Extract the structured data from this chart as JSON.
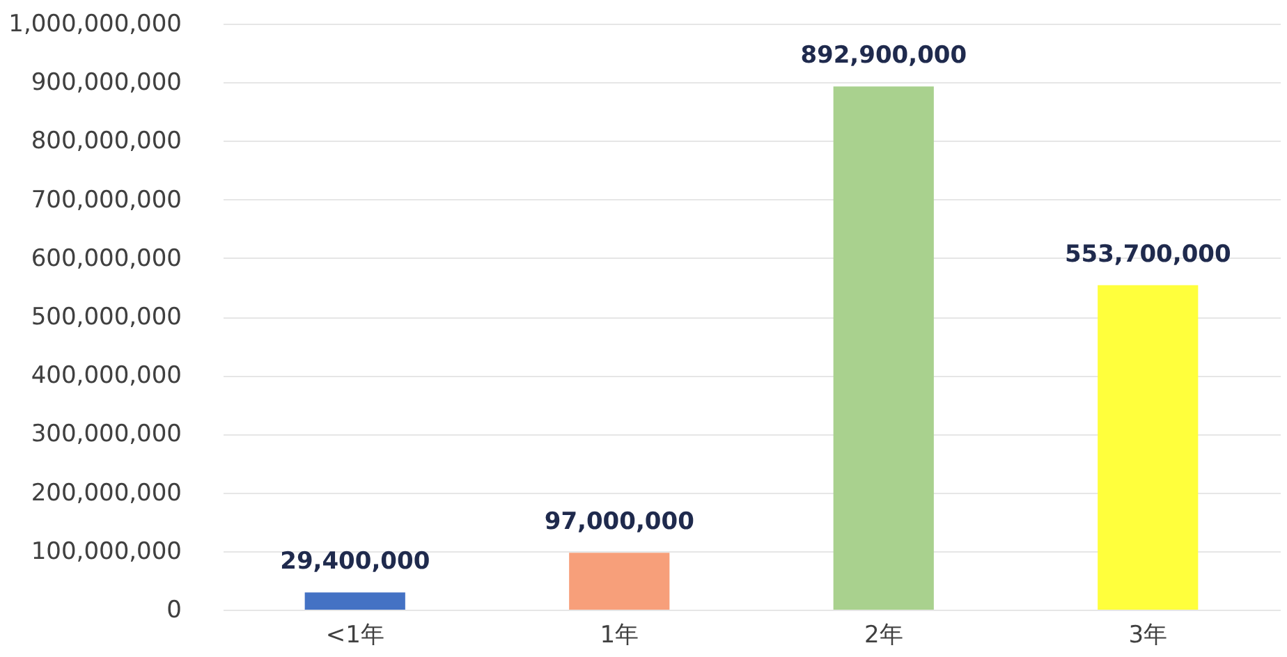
{
  "chart_data": {
    "type": "bar",
    "categories": [
      "<1年",
      "1年",
      "2年",
      "3年"
    ],
    "values": [
      29400000,
      97000000,
      892900000,
      553700000
    ],
    "value_labels": [
      "29,400,000",
      "97,000,000",
      "892,900,000",
      "553,700,000"
    ],
    "colors": [
      "#4472c4",
      "#f79f7a",
      "#a9d18e",
      "#ffff3c"
    ],
    "ylim": [
      0,
      1000000000
    ],
    "yticks": [
      0,
      {
        "value": 100000000,
        "label": "100,000,000"
      },
      {
        "value": 200000000,
        "label": "200,000,000"
      },
      {
        "value": 300000000,
        "label": "300,000,000"
      },
      {
        "value": 400000000,
        "label": "400,000,000"
      },
      {
        "value": 500000000,
        "label": "500,000,000"
      },
      {
        "value": 600000000,
        "label": "600,000,000"
      },
      {
        "value": 700000000,
        "label": "700,000,000"
      },
      {
        "value": 800000000,
        "label": "800,000,000"
      },
      {
        "value": 900000000,
        "label": "900,000,000"
      },
      {
        "value": 1000000000,
        "label": "1,000,000,000"
      }
    ],
    "grid": "y"
  }
}
